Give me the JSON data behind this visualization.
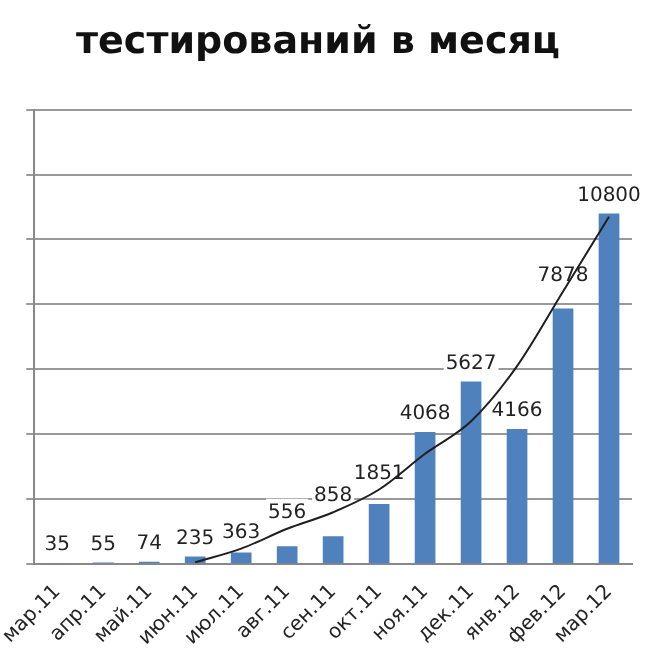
{
  "chart_data": {
    "type": "bar",
    "title": "тестирований в месяц",
    "categories": [
      "мар.11",
      "апр.11",
      "май.11",
      "июн.11",
      "июл.11",
      "авг.11",
      "сен.11",
      "окт.11",
      "ноя.11",
      "дек.11",
      "янв.12",
      "фев.12",
      "мар.12"
    ],
    "series": [
      {
        "color": "#4f81bd",
        "values": [
          35,
          55,
          74,
          235,
          363,
          556,
          858,
          1851,
          4068,
          5627,
          4166,
          7878,
          10800
        ],
        "value_labels": [
          "35",
          "55",
          "74",
          "235",
          "363",
          "556",
          "858",
          "1851",
          "4068",
          "5627",
          "4166",
          "7878",
          "10800"
        ]
      },
      {
        "type": "line",
        "color": "#1f1f1f",
        "x": [
          "июн.11",
          "июл.11",
          "авг.11",
          "сен.11",
          "окт.11",
          "ноя.11",
          "дек.11",
          "янв.12",
          "фев.12",
          "мар.12"
        ],
        "values": [
          60,
          480,
          1090,
          1600,
          2300,
          3400,
          4400,
          6100,
          8400,
          10700
        ]
      }
    ],
    "ylim": [
      0,
      14000
    ],
    "yticks": [
      {
        "value": 0,
        "label": null
      },
      {
        "value": 2000,
        "label": null
      },
      {
        "value": 4000,
        "label": null
      },
      {
        "value": 6000,
        "label": null
      },
      {
        "value": 8000,
        "label": null
      },
      {
        "value": 10000,
        "label": null
      },
      {
        "value": 12000,
        "label": null
      },
      {
        "value": 14000,
        "label": null
      }
    ],
    "tick_labels": "x",
    "grid": "y",
    "legend": false,
    "marker": "none"
  }
}
